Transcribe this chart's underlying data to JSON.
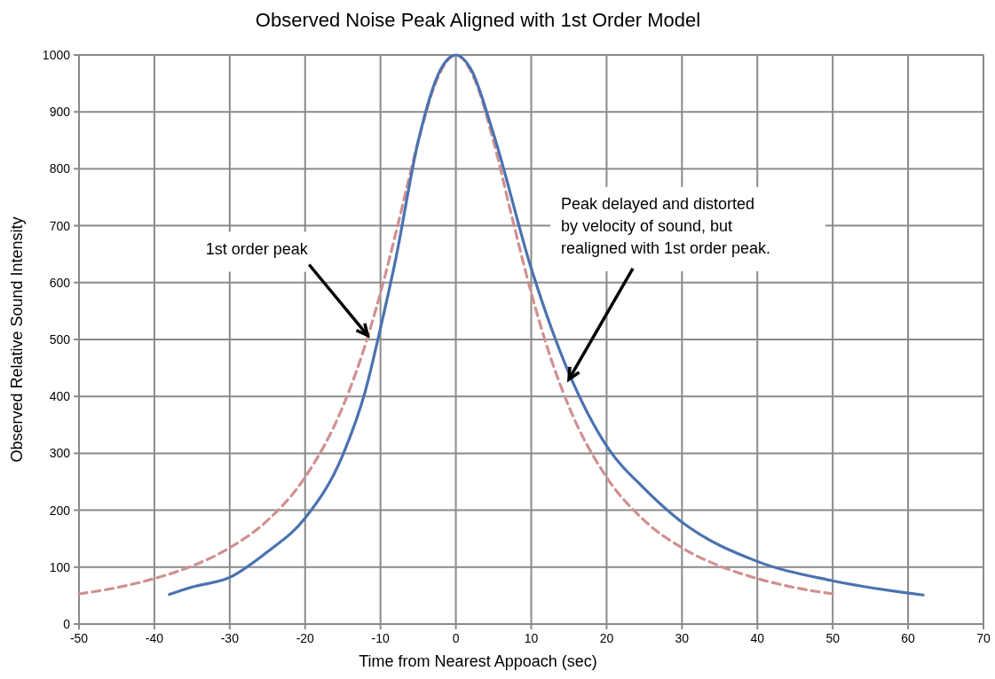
{
  "chart_data": {
    "type": "line",
    "title": "Observed Noise Peak Aligned with 1st Order Model",
    "xlabel": "Time from Nearest Appoach (sec)",
    "ylabel": "Observed Relative Sound Intensity",
    "xlim": [
      -50,
      70
    ],
    "xticks": [
      -50,
      -40,
      -30,
      -20,
      -10,
      0,
      10,
      20,
      30,
      40,
      50,
      60,
      70
    ],
    "ylim": [
      0,
      1000
    ],
    "yticks": [
      0,
      100,
      200,
      300,
      400,
      500,
      600,
      700,
      800,
      900,
      1000
    ],
    "grid": true,
    "series": [
      {
        "color": "#d09090",
        "line_style": "dashed",
        "x": [
          -50,
          -45,
          -40,
          -35,
          -30,
          -25,
          -20,
          -15,
          -12.5,
          -10,
          -7.5,
          -5,
          -2.5,
          0,
          2.5,
          5,
          7.5,
          10,
          12.5,
          15,
          20,
          25,
          30,
          35,
          40,
          45,
          50
        ],
        "values": [
          53,
          64,
          80,
          102,
          134,
          182,
          258,
          382,
          471,
          582,
          712,
          848,
          957,
          1000,
          957,
          848,
          712,
          582,
          471,
          382,
          258,
          182,
          134,
          102,
          80,
          64,
          53
        ]
      },
      {
        "color": "#4a72b0",
        "line_style": "solid",
        "x": [
          -38,
          -35,
          -30,
          -25,
          -20,
          -15,
          -12,
          -10,
          -8,
          -5,
          -2,
          0,
          2,
          5,
          10,
          15,
          20,
          25,
          30,
          40,
          50,
          62
        ],
        "values": [
          52,
          65,
          82,
          127,
          186,
          297,
          410,
          520,
          640,
          848,
          975,
          1000,
          975,
          861,
          625,
          441,
          313,
          238,
          179,
          110,
          76,
          51
        ]
      }
    ],
    "annotations": [
      {
        "text": "1st order peak",
        "x": -11.7,
        "y": 507
      },
      {
        "text": "Peak delayed and distorted\nby velocity of sound, but\nrealigned with 1st order peak.",
        "x": 15,
        "y": 430
      }
    ]
  }
}
